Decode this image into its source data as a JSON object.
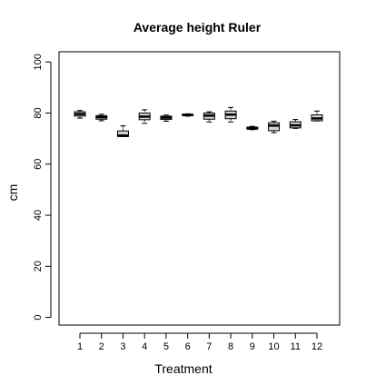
{
  "chart_data": {
    "type": "boxplot",
    "title": "Average height Ruler",
    "xlabel": "Treatment",
    "ylabel": "cm",
    "ylim": [
      -3,
      104
    ],
    "y_ticks": [
      0,
      20,
      40,
      60,
      80,
      100
    ],
    "categories": [
      "1",
      "2",
      "3",
      "4",
      "5",
      "6",
      "7",
      "8",
      "9",
      "10",
      "11",
      "12"
    ],
    "boxes": [
      {
        "min": 78.0,
        "q1": 78.8,
        "median": 79.6,
        "q3": 80.5,
        "max": 81.0
      },
      {
        "min": 77.0,
        "q1": 77.6,
        "median": 78.4,
        "q3": 79.0,
        "max": 79.5
      },
      {
        "min": 70.8,
        "q1": 70.8,
        "median": 71.2,
        "q3": 73.0,
        "max": 75.0
      },
      {
        "min": 76.0,
        "q1": 77.4,
        "median": 78.6,
        "q3": 80.0,
        "max": 81.3
      },
      {
        "min": 76.8,
        "q1": 77.5,
        "median": 78.2,
        "q3": 78.8,
        "max": 79.2
      },
      {
        "min": 78.8,
        "q1": 79.0,
        "median": 79.3,
        "q3": 79.5,
        "max": 79.7
      },
      {
        "min": 76.5,
        "q1": 77.6,
        "median": 79.0,
        "q3": 80.0,
        "max": 80.5
      },
      {
        "min": 76.5,
        "q1": 77.8,
        "median": 79.4,
        "q3": 80.8,
        "max": 82.2
      },
      {
        "min": 73.5,
        "q1": 73.7,
        "median": 74.0,
        "q3": 74.5,
        "max": 74.8
      },
      {
        "min": 72.3,
        "q1": 73.1,
        "median": 75.1,
        "q3": 76.2,
        "max": 76.8
      },
      {
        "min": 74.0,
        "q1": 74.2,
        "median": 75.2,
        "q3": 76.6,
        "max": 77.5
      },
      {
        "min": 76.9,
        "q1": 77.0,
        "median": 77.9,
        "q3": 79.3,
        "max": 80.8
      }
    ],
    "box_fill": "#d3d3d3",
    "grid": false
  }
}
